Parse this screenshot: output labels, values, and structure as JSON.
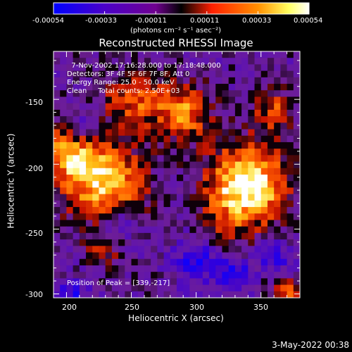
{
  "colorbar": {
    "ticks": [
      "-0.00054",
      "-0.00033",
      "-0.00011",
      "0.00011",
      "0.00033",
      "0.00054"
    ],
    "units": "(photons cm⁻² s⁻¹ asec⁻²)"
  },
  "title": "Reconstructed RHESSI Image",
  "overlay_lines": [
    "  7-Nov-2002 17:16:28.000 to 17:18:48.000",
    "Detectors: 3F 4F 5F 6F 7F 8F, Att 0",
    "Energy Range: 25.0 - 50.0 keV",
    "Clean     Total counts: 2.50E+03"
  ],
  "peak_label": "Position of Peak = [339,-217]",
  "date_stamp": "3-May-2022 00:38",
  "chart_data": {
    "type": "heatmap",
    "title": "Reconstructed RHESSI Image",
    "xlabel": "Heliocentric X (arcsec)",
    "ylabel": "Heliocentric Y (arcsec)",
    "xlim": [
      190,
      380
    ],
    "ylim": [
      -303,
      -113
    ],
    "x_ticks": [
      "200",
      "250",
      "300",
      "350"
    ],
    "y_ticks": [
      "-150",
      "-200",
      "-250",
      "-300"
    ],
    "x_tick_values": [
      200,
      250,
      300,
      350
    ],
    "y_tick_values": [
      -150,
      -200,
      -250,
      -300
    ],
    "colorbar_range": [
      -0.00054,
      0.00054
    ],
    "peak_position": [
      339,
      -217
    ],
    "colormap": [
      "#0000ff",
      "#4b00c8",
      "#700090",
      "#000000",
      "#ff2000",
      "#ff9000",
      "#ffff80",
      "#ffffff"
    ]
  }
}
